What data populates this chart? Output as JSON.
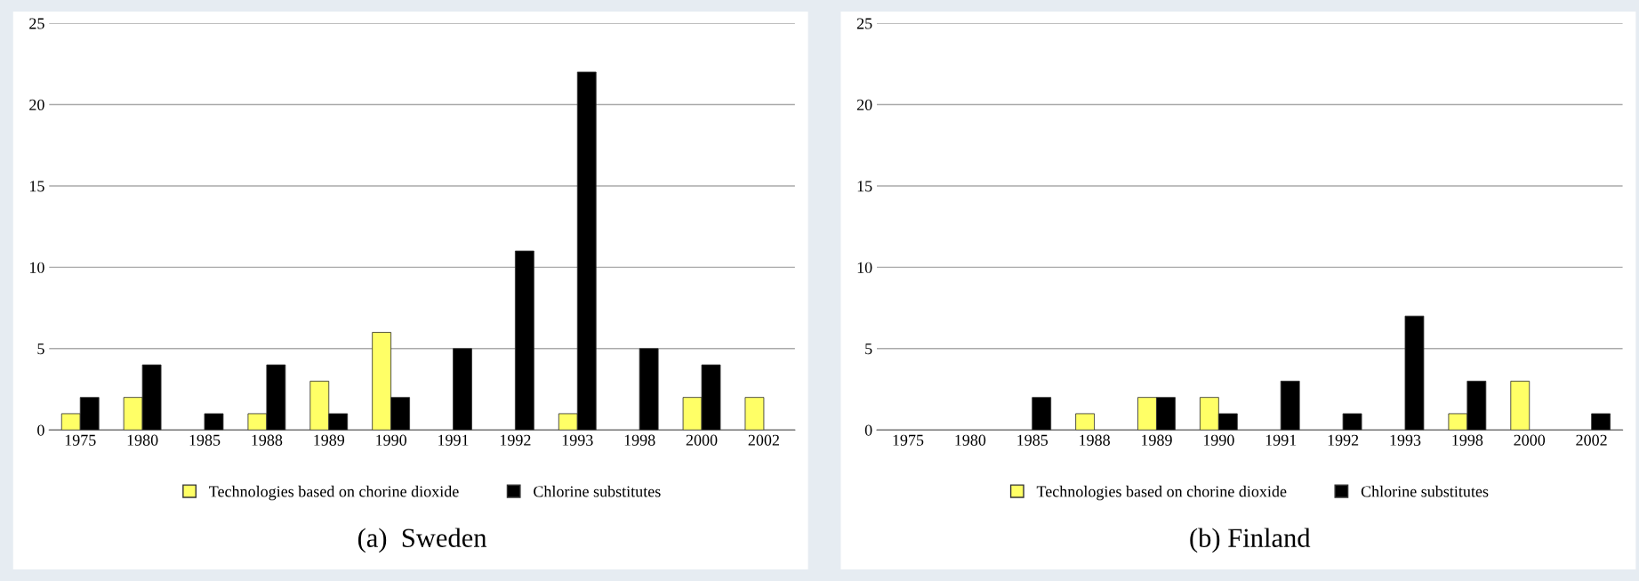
{
  "chart_data": [
    {
      "type": "bar",
      "title": "(a)  Sweden",
      "categories": [
        "1975",
        "1980",
        "1985",
        "1988",
        "1989",
        "1990",
        "1991",
        "1992",
        "1993",
        "1998",
        "2000",
        "2002"
      ],
      "series": [
        {
          "name": "Technologies based on chorine dioxide",
          "color": "#ffff66",
          "values": [
            1,
            2,
            0,
            1,
            3,
            6,
            0,
            0,
            1,
            0,
            2,
            2
          ]
        },
        {
          "name": "Chlorine substitutes",
          "color": "#000000",
          "values": [
            2,
            4,
            1,
            4,
            1,
            2,
            5,
            11,
            22,
            5,
            4,
            0
          ]
        }
      ],
      "ylim": [
        0,
        25
      ],
      "yticks": [
        0,
        5,
        10,
        15,
        20,
        25
      ],
      "grid": "y",
      "legend": "bottom"
    },
    {
      "type": "bar",
      "title": "(b) Finland",
      "categories": [
        "1975",
        "1980",
        "1985",
        "1988",
        "1989",
        "1990",
        "1991",
        "1992",
        "1993",
        "1998",
        "2000",
        "2002"
      ],
      "series": [
        {
          "name": "Technologies based on chorine dioxide",
          "color": "#ffff66",
          "values": [
            0,
            0,
            0,
            1,
            2,
            2,
            0,
            0,
            0,
            1,
            3,
            0
          ]
        },
        {
          "name": "Chlorine substitutes",
          "color": "#000000",
          "values": [
            0,
            0,
            2,
            0,
            2,
            1,
            3,
            1,
            7,
            3,
            0,
            1
          ]
        }
      ],
      "ylim": [
        0,
        25
      ],
      "yticks": [
        0,
        5,
        10,
        15,
        20,
        25
      ],
      "grid": "y",
      "legend": "bottom"
    }
  ]
}
